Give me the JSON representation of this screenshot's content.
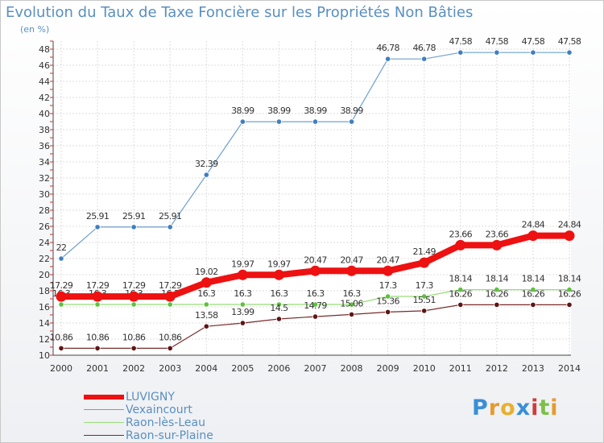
{
  "chart_data": {
    "type": "line",
    "title": "Evolution du Taux de Taxe Foncière sur les Propriétés Non Bâties",
    "ylabel": "(en %)",
    "xlabel": "",
    "categories": [
      "2000",
      "2001",
      "2002",
      "2003",
      "2004",
      "2005",
      "2006",
      "2007",
      "2008",
      "2009",
      "2010",
      "2011",
      "2012",
      "2013",
      "2014"
    ],
    "ylim": [
      10,
      49
    ],
    "yticks": [
      10,
      12,
      14,
      16,
      18,
      20,
      22,
      24,
      26,
      28,
      30,
      32,
      34,
      36,
      38,
      40,
      42,
      44,
      46,
      48
    ],
    "grid": true,
    "legend_position": "bottom-left",
    "series": [
      {
        "name": "Vexaincourt",
        "color": "#6fa0cf",
        "marker": "#3f7fbf",
        "values": [
          22,
          25.91,
          25.91,
          25.91,
          32.39,
          38.99,
          38.99,
          38.99,
          38.99,
          46.78,
          46.78,
          47.58,
          47.58,
          47.58,
          47.58
        ],
        "labels": [
          "22",
          "25.91",
          "25.91",
          "25.91",
          "32.39",
          "38.99",
          "38.99",
          "38.99",
          "38.99",
          "46.78",
          "46.78",
          "47.58",
          "47.58",
          "47.58",
          "47.58"
        ]
      },
      {
        "name": "Raon-lès-Leau",
        "color": "#98dd78",
        "marker": "#5cc23c",
        "values": [
          16.3,
          16.3,
          16.3,
          16.3,
          16.3,
          16.3,
          16.3,
          16.3,
          16.3,
          17.3,
          17.3,
          18.14,
          18.14,
          18.14,
          18.14
        ],
        "labels": [
          "16.3",
          "16.3",
          "16.3",
          "16.3",
          "16.3",
          "16.3",
          "16.3",
          "16.3",
          "16.3",
          "17.3",
          "17.3",
          "18.14",
          "18.14",
          "18.14",
          "18.14"
        ]
      },
      {
        "name": "Raon-sur-Plaine",
        "color": "#7a2a2a",
        "marker": "#5e1515",
        "values": [
          10.86,
          10.86,
          10.86,
          10.86,
          13.58,
          13.99,
          14.5,
          14.79,
          15.06,
          15.36,
          15.51,
          16.26,
          16.26,
          16.26,
          16.26
        ],
        "labels": [
          "10.86",
          "10.86",
          "10.86",
          "10.86",
          "13.58",
          "13.99",
          "14.5",
          "14.79",
          "15.06",
          "15.36",
          "15.51",
          "16.26",
          "16.26",
          "16.26",
          "16.26"
        ]
      },
      {
        "name": "LUVIGNY",
        "color": "#ee1111",
        "marker": "#ee1111",
        "values": [
          17.29,
          17.29,
          17.29,
          17.29,
          19.02,
          19.97,
          19.97,
          20.47,
          20.47,
          20.47,
          21.49,
          23.66,
          23.66,
          24.84,
          24.84
        ],
        "labels": [
          "17.29",
          "17.29",
          "17.29",
          "17.29",
          "19.02",
          "19.97",
          "19.97",
          "20.47",
          "20.47",
          "20.47",
          "21.49",
          "23.66",
          "23.66",
          "24.84",
          "24.84"
        ]
      }
    ]
  },
  "legend": {
    "items": [
      {
        "name": "LUVIGNY",
        "color": "#ee1111"
      },
      {
        "name": "Vexaincourt",
        "color": "#6fa0cf"
      },
      {
        "name": "Raon-lès-Leau",
        "color": "#98dd78"
      },
      {
        "name": "Raon-sur-Plaine",
        "color": "#7a2a2a"
      }
    ]
  },
  "logo": {
    "text": "Proxiti",
    "letters": [
      "P",
      "r",
      "o",
      "x",
      "i",
      "t",
      "i"
    ],
    "colors": [
      "#3a8fd6",
      "#e59b2d",
      "#e8b030",
      "#3a8fd6",
      "#d03b3b",
      "#7cc046",
      "#e59b2d"
    ]
  }
}
